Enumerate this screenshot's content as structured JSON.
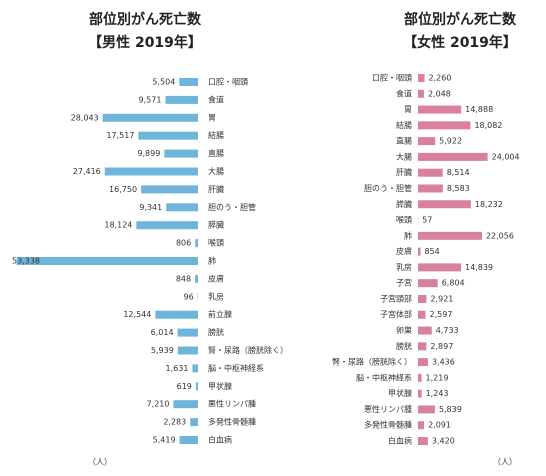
{
  "chart_data": [
    {
      "type": "bar",
      "orientation": "horizontal",
      "bar_direction": "left",
      "title": "部位別がん死亡数",
      "subtitle": "【男性 2019年】",
      "unit": "（人）",
      "color": "#6fb5d9",
      "categories": [
        "口腔・咽頭",
        "食道",
        "胃",
        "結腸",
        "直腸",
        "大腸",
        "肝臓",
        "胆のう・胆管",
        "膵臓",
        "喉頭",
        "肺",
        "皮膚",
        "乳房",
        "前立腺",
        "膀胱",
        "腎・尿路（膀胱除く）",
        "脳・中枢神経系",
        "甲状腺",
        "悪性リンパ腫",
        "多発性骨髄腫",
        "白血病"
      ],
      "values": [
        5504,
        9571,
        28043,
        17517,
        9899,
        27416,
        16750,
        9341,
        18124,
        806,
        53338,
        848,
        96,
        12544,
        6014,
        5939,
        1631,
        619,
        7210,
        2283,
        5419
      ],
      "value_labels": [
        "5,504",
        "9,571",
        "28,043",
        "17,517",
        "9,899",
        "27,416",
        "16,750",
        "9,341",
        "18,124",
        "806",
        "53,338",
        "848",
        "96",
        "12,544",
        "6,014",
        "5,939",
        "1,631",
        "619",
        "7,210",
        "2,283",
        "5,419"
      ]
    },
    {
      "type": "bar",
      "orientation": "horizontal",
      "bar_direction": "right",
      "title": "部位別がん死亡数",
      "subtitle": "【女性 2019年】",
      "unit": "（人）",
      "color": "#d9809f",
      "categories": [
        "口腔・咽頭",
        "食道",
        "胃",
        "結腸",
        "直腸",
        "大腸",
        "肝臓",
        "胆のう・胆管",
        "膵臓",
        "喉頭",
        "肺",
        "皮膚",
        "乳房",
        "子宮",
        "子宮頸部",
        "子宮体部",
        "卵巣",
        "膀胱",
        "腎・尿路（膀胱除く）",
        "脳・中枢神経系",
        "甲状腺",
        "悪性リンパ腫",
        "多発性骨髄腫",
        "白血病"
      ],
      "values": [
        2260,
        2048,
        14888,
        18082,
        5922,
        24004,
        8514,
        8583,
        18232,
        57,
        22056,
        854,
        14839,
        6804,
        2921,
        2597,
        4733,
        2897,
        3436,
        1219,
        1243,
        5839,
        2091,
        3420
      ],
      "value_labels": [
        "2,260",
        "2,048",
        "14,888",
        "18,082",
        "5,922",
        "24,004",
        "8,514",
        "8,583",
        "18,232",
        "57",
        "22,056",
        "854",
        "14,839",
        "6,804",
        "2,921",
        "2,597",
        "4,733",
        "2,897",
        "3,436",
        "1,219",
        "1,243",
        "5,839",
        "2,091",
        "3,420"
      ]
    }
  ]
}
